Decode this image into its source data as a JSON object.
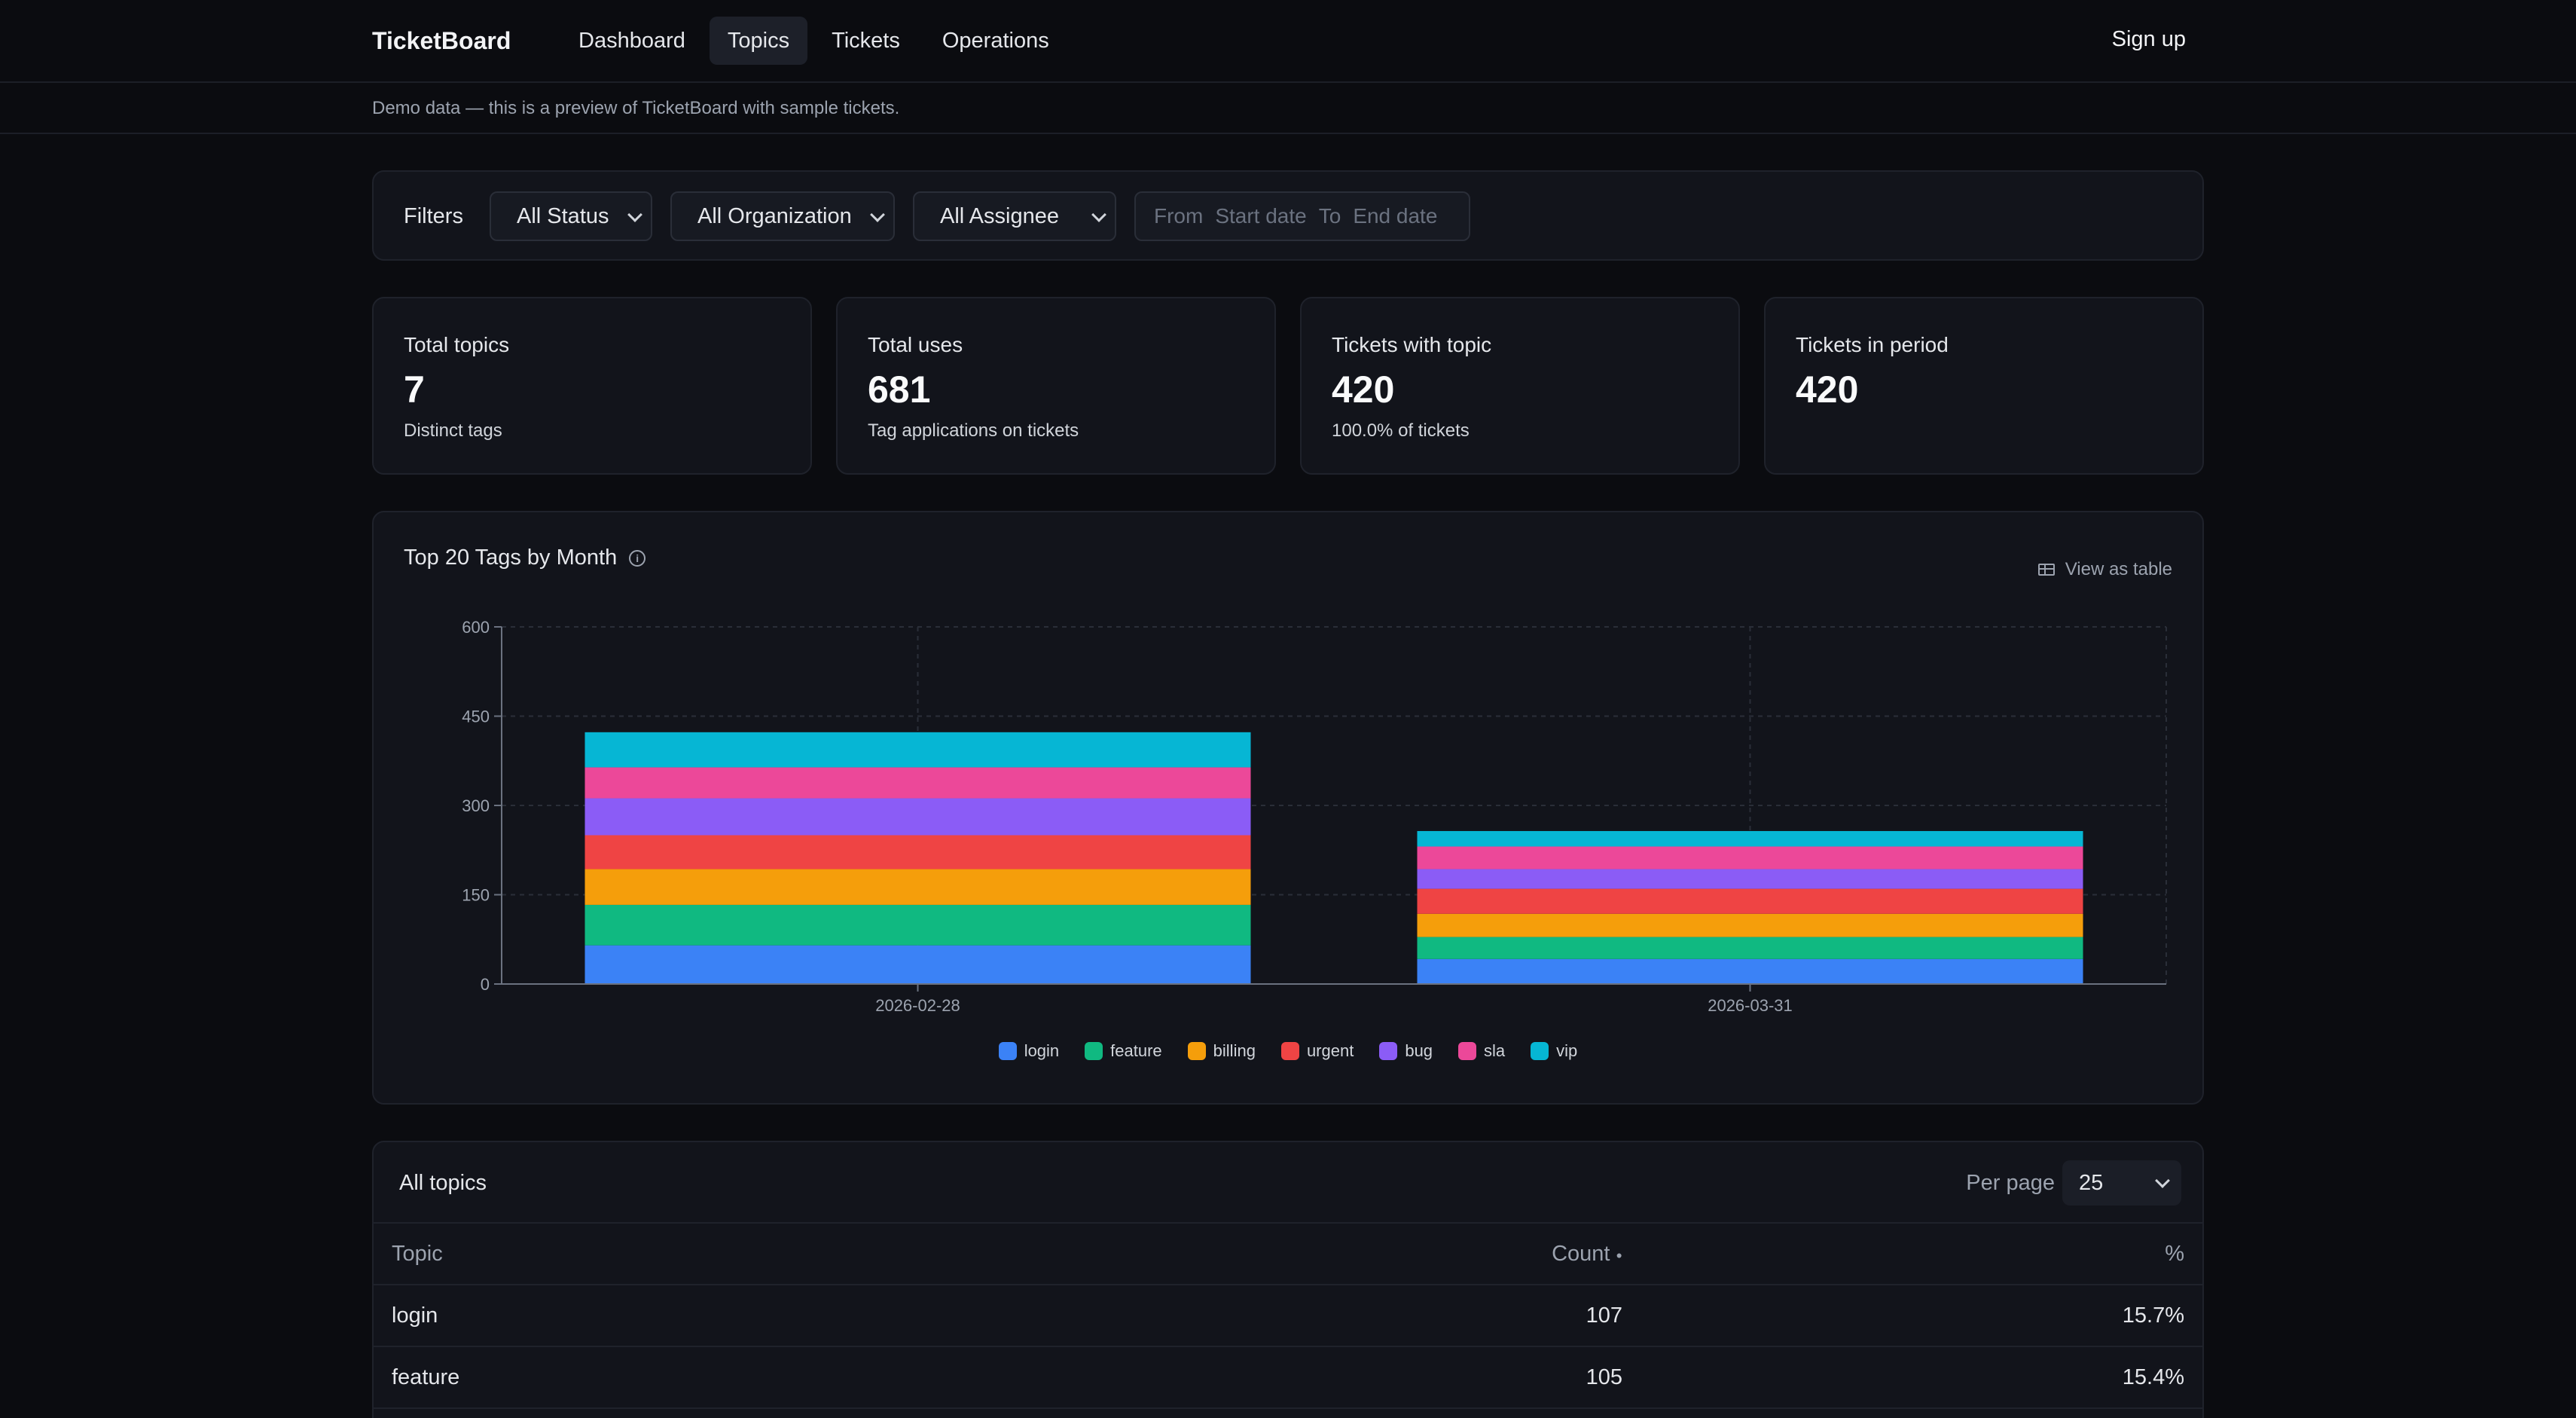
{
  "nav": {
    "brand": "TicketBoard",
    "links": [
      "Dashboard",
      "Topics",
      "Tickets",
      "Operations"
    ],
    "active": "Topics",
    "signup": "Sign up"
  },
  "demo_notice": "Demo data — this is a preview of TicketBoard with sample tickets.",
  "filters": {
    "label": "Filters",
    "status": "All Status",
    "organization": "All Organization",
    "assignee": "All Assignee",
    "from_label": "From",
    "start_placeholder": "Start date",
    "to_label": "To",
    "end_placeholder": "End date"
  },
  "stats": [
    {
      "title": "Total topics",
      "value": "7",
      "sub": "Distinct tags"
    },
    {
      "title": "Total uses",
      "value": "681",
      "sub": "Tag applications on tickets"
    },
    {
      "title": "Tickets with topic",
      "value": "420",
      "sub": "100.0% of tickets"
    },
    {
      "title": "Tickets in period",
      "value": "420",
      "sub": ""
    }
  ],
  "chart": {
    "title": "Top 20 Tags by Month",
    "view_as_table": "View as table"
  },
  "chart_data": {
    "type": "bar",
    "stacked": true,
    "categories": [
      "2026-02-28",
      "2026-03-31"
    ],
    "ylim": [
      0,
      600
    ],
    "yticks": [
      0,
      150,
      300,
      450,
      600
    ],
    "grid": true,
    "legend_position": "bottom",
    "series": [
      {
        "name": "login",
        "color": "#3b82f6",
        "values": [
          65,
          42
        ]
      },
      {
        "name": "feature",
        "color": "#10b981",
        "values": [
          68,
          37
        ]
      },
      {
        "name": "billing",
        "color": "#f59e0b",
        "values": [
          60,
          39
        ]
      },
      {
        "name": "urgent",
        "color": "#ef4444",
        "values": [
          57,
          42
        ]
      },
      {
        "name": "bug",
        "color": "#8b5cf6",
        "values": [
          62,
          33
        ]
      },
      {
        "name": "sla",
        "color": "#ec4899",
        "values": [
          52,
          38
        ]
      },
      {
        "name": "vip",
        "color": "#06b6d4",
        "values": [
          59,
          26
        ]
      }
    ]
  },
  "topics_table": {
    "title": "All topics",
    "per_page_label": "Per page",
    "per_page_value": "25",
    "columns": [
      "Topic",
      "Count",
      "%"
    ],
    "rows": [
      {
        "topic": "login",
        "count": "107",
        "pct": "15.7%"
      },
      {
        "topic": "feature",
        "count": "105",
        "pct": "15.4%"
      }
    ]
  }
}
